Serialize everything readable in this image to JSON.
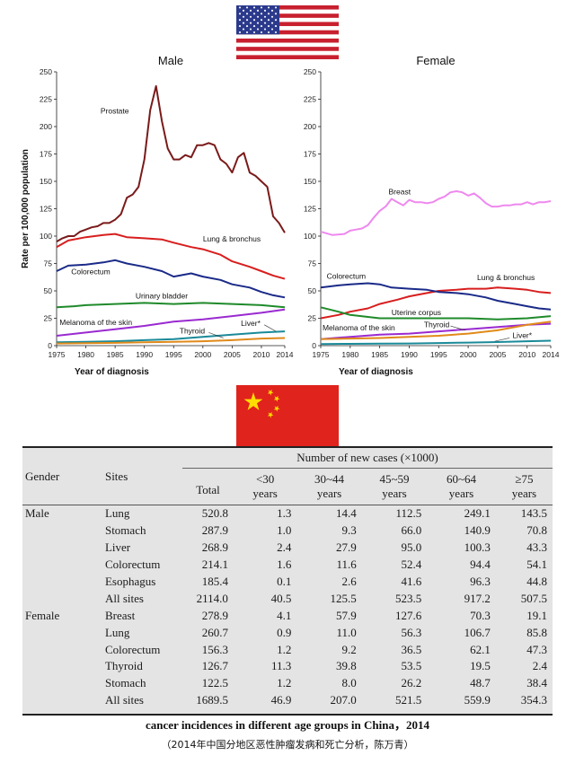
{
  "flags": {
    "top": "us-flag",
    "middle": "china-flag"
  },
  "chart_data": [
    {
      "type": "line",
      "title": "Male",
      "xlabel": "Year of diagnosis",
      "ylabel": "Rate per 100,000 population",
      "xlim": [
        1975,
        2014
      ],
      "ylim": [
        0,
        250
      ],
      "xticks": [
        "1975",
        "1980",
        "1985",
        "1990",
        "1995",
        "2000",
        "2005",
        "2010",
        "2014"
      ],
      "yticks": [
        "0",
        "25",
        "50",
        "75",
        "100",
        "125",
        "150",
        "175",
        "200",
        "225",
        "250"
      ],
      "series": [
        {
          "name": "Prostate",
          "color": "#7a1a1a",
          "x": [
            1975,
            1976,
            1977,
            1978,
            1979,
            1980,
            1981,
            1982,
            1983,
            1984,
            1985,
            1986,
            1987,
            1988,
            1989,
            1990,
            1991,
            1992,
            1993,
            1994,
            1995,
            1996,
            1997,
            1998,
            1999,
            2000,
            2001,
            2002,
            2003,
            2004,
            2005,
            2006,
            2007,
            2008,
            2009,
            2010,
            2011,
            2012,
            2013,
            2014
          ],
          "y": [
            95,
            98,
            100,
            100,
            104,
            106,
            108,
            109,
            112,
            112,
            115,
            120,
            135,
            138,
            145,
            170,
            215,
            237,
            205,
            180,
            170,
            170,
            174,
            172,
            183,
            183,
            185,
            183,
            170,
            166,
            158,
            172,
            176,
            158,
            155,
            150,
            145,
            118,
            112,
            103
          ]
        },
        {
          "name": "Lung & bronchus",
          "color": "#d81e1e",
          "x": [
            1975,
            1977,
            1980,
            1983,
            1985,
            1987,
            1990,
            1993,
            1995,
            1998,
            2000,
            2003,
            2005,
            2008,
            2010,
            2012,
            2014
          ],
          "y": [
            90,
            96,
            99,
            101,
            102,
            99,
            98,
            97,
            94,
            90,
            88,
            83,
            77,
            72,
            68,
            64,
            61
          ]
        },
        {
          "name": "Colorectum",
          "color": "#1a2a88",
          "x": [
            1975,
            1977,
            1980,
            1983,
            1985,
            1987,
            1990,
            1993,
            1995,
            1998,
            2000,
            2003,
            2005,
            2008,
            2010,
            2012,
            2014
          ],
          "y": [
            68,
            73,
            74,
            76,
            78,
            75,
            72,
            68,
            63,
            66,
            63,
            60,
            56,
            53,
            49,
            46,
            44
          ]
        },
        {
          "name": "Urinary bladder",
          "color": "#1f8a2a",
          "x": [
            1975,
            1978,
            1980,
            1985,
            1990,
            1995,
            2000,
            2005,
            2010,
            2014
          ],
          "y": [
            35,
            36,
            37,
            38,
            39,
            38,
            39,
            38,
            37,
            35
          ]
        },
        {
          "name": "Melanoma of the skin",
          "color": "#9a2ad0",
          "x": [
            1975,
            1980,
            1985,
            1990,
            1995,
            2000,
            2005,
            2010,
            2014
          ],
          "y": [
            9,
            12,
            15,
            18,
            22,
            24,
            27,
            30,
            33
          ]
        },
        {
          "name": "Liver*",
          "color": "#1a8a99",
          "x": [
            1975,
            1980,
            1985,
            1990,
            1995,
            2000,
            2005,
            2010,
            2014
          ],
          "y": [
            3,
            3.5,
            4,
            5,
            6,
            8,
            10,
            12,
            13
          ]
        },
        {
          "name": "Thyroid",
          "color": "#e08a1a",
          "x": [
            1975,
            1980,
            1985,
            1990,
            1995,
            2000,
            2005,
            2010,
            2014
          ],
          "y": [
            2,
            2.2,
            2.5,
            3,
            3.5,
            4,
            5,
            6.5,
            7
          ]
        }
      ]
    },
    {
      "type": "line",
      "title": "Female",
      "xlabel": "Year of diagnosis",
      "ylabel": "",
      "xlim": [
        1975,
        2014
      ],
      "ylim": [
        0,
        250
      ],
      "xticks": [
        "1975",
        "1980",
        "1985",
        "1990",
        "1995",
        "2000",
        "2005",
        "2010",
        "2014"
      ],
      "yticks": [
        "0",
        "25",
        "50",
        "75",
        "100",
        "125",
        "150",
        "175",
        "200",
        "225",
        "250"
      ],
      "series": [
        {
          "name": "Breast",
          "color": "#ee88ee",
          "x": [
            1975,
            1977,
            1979,
            1980,
            1981,
            1982,
            1983,
            1984,
            1985,
            1986,
            1987,
            1988,
            1989,
            1990,
            1991,
            1992,
            1993,
            1994,
            1995,
            1996,
            1997,
            1998,
            1999,
            2000,
            2001,
            2002,
            2003,
            2004,
            2005,
            2006,
            2007,
            2008,
            2009,
            2010,
            2011,
            2012,
            2013,
            2014
          ],
          "y": [
            104,
            101,
            102,
            105,
            106,
            107,
            110,
            117,
            123,
            127,
            134,
            131,
            128,
            133,
            131,
            131,
            130,
            131,
            134,
            136,
            140,
            141,
            140,
            137,
            139,
            135,
            130,
            127,
            127,
            128,
            128,
            129,
            129,
            131,
            129,
            131,
            131,
            132
          ]
        },
        {
          "name": "Lung & bronchus",
          "color": "#d81e1e",
          "x": [
            1975,
            1978,
            1980,
            1983,
            1985,
            1988,
            1990,
            1993,
            1995,
            1998,
            2000,
            2003,
            2005,
            2008,
            2010,
            2012,
            2014
          ],
          "y": [
            25,
            28,
            31,
            34,
            38,
            42,
            45,
            48,
            50,
            51,
            52,
            52,
            53,
            52,
            51,
            49,
            48
          ]
        },
        {
          "name": "Colorectum",
          "color": "#1a2a88",
          "x": [
            1975,
            1978,
            1980,
            1983,
            1985,
            1987,
            1990,
            1993,
            1995,
            1998,
            2000,
            2003,
            2005,
            2008,
            2010,
            2012,
            2014
          ],
          "y": [
            53,
            55,
            56,
            57,
            56,
            53,
            52,
            51,
            49,
            48,
            47,
            44,
            41,
            38,
            36,
            34,
            33
          ]
        },
        {
          "name": "Uterine corpus",
          "color": "#1f8a2a",
          "x": [
            1975,
            1978,
            1980,
            1985,
            1990,
            1995,
            2000,
            2005,
            2010,
            2014
          ],
          "y": [
            35,
            31,
            28,
            25,
            25,
            25,
            25,
            24,
            25,
            27
          ]
        },
        {
          "name": "Melanoma of the skin",
          "color": "#9a2ad0",
          "x": [
            1975,
            1980,
            1985,
            1990,
            1995,
            2000,
            2005,
            2010,
            2014
          ],
          "y": [
            6,
            8,
            10,
            11,
            13,
            15,
            17,
            19,
            20
          ]
        },
        {
          "name": "Thyroid",
          "color": "#e08a1a",
          "x": [
            1975,
            1980,
            1985,
            1990,
            1995,
            2000,
            2005,
            2010,
            2014
          ],
          "y": [
            6,
            6.5,
            7,
            8,
            9,
            11,
            14,
            19,
            22
          ]
        },
        {
          "name": "Liver*",
          "color": "#1a8a99",
          "x": [
            1975,
            1980,
            1985,
            1990,
            1995,
            2000,
            2005,
            2010,
            2014
          ],
          "y": [
            1.5,
            1.6,
            1.8,
            2,
            2.4,
            2.8,
            3.3,
            4,
            4.5
          ]
        }
      ]
    },
    {
      "type": "table",
      "caption": "cancer incidences in different age groups in China，2014",
      "subcaption": "（2014年中国分地区恶性肿瘤发病和死亡分析，陈万青）",
      "header": {
        "gender": "Gender",
        "sites": "Sites",
        "group": "Number of new cases (×1000)",
        "cols": [
          {
            "top": "Total",
            "bottom": ""
          },
          {
            "top": "<30",
            "bottom": "years"
          },
          {
            "top": "30~44",
            "bottom": "years"
          },
          {
            "top": "45~59",
            "bottom": "years"
          },
          {
            "top": "60~64",
            "bottom": "years"
          },
          {
            "top": "≥75",
            "bottom": "years"
          }
        ]
      },
      "rows": [
        {
          "gender": "Male",
          "site": "Lung",
          "values": [
            "520.8",
            "1.3",
            "14.4",
            "112.5",
            "249.1",
            "143.5"
          ]
        },
        {
          "gender": "",
          "site": "Stomach",
          "values": [
            "287.9",
            "1.0",
            "9.3",
            "66.0",
            "140.9",
            "70.8"
          ]
        },
        {
          "gender": "",
          "site": "Liver",
          "values": [
            "268.9",
            "2.4",
            "27.9",
            "95.0",
            "100.3",
            "43.3"
          ]
        },
        {
          "gender": "",
          "site": "Colorectum",
          "values": [
            "214.1",
            "1.6",
            "11.6",
            "52.4",
            "94.4",
            "54.1"
          ]
        },
        {
          "gender": "",
          "site": "Esophagus",
          "values": [
            "185.4",
            "0.1",
            "2.6",
            "41.6",
            "96.3",
            "44.8"
          ]
        },
        {
          "gender": "",
          "site": "All sites",
          "values": [
            "2114.0",
            "40.5",
            "125.5",
            "523.5",
            "917.2",
            "507.5"
          ]
        },
        {
          "gender": "Female",
          "site": "Breast",
          "values": [
            "278.9",
            "4.1",
            "57.9",
            "127.6",
            "70.3",
            "19.1"
          ]
        },
        {
          "gender": "",
          "site": "Lung",
          "values": [
            "260.7",
            "0.9",
            "11.0",
            "56.3",
            "106.7",
            "85.8"
          ]
        },
        {
          "gender": "",
          "site": "Colorectum",
          "values": [
            "156.3",
            "1.2",
            "9.2",
            "36.5",
            "62.1",
            "47.3"
          ]
        },
        {
          "gender": "",
          "site": "Thyroid",
          "values": [
            "126.7",
            "11.3",
            "39.8",
            "53.5",
            "19.5",
            "2.4"
          ]
        },
        {
          "gender": "",
          "site": "Stomach",
          "values": [
            "122.5",
            "1.2",
            "8.0",
            "26.2",
            "48.7",
            "38.4"
          ]
        },
        {
          "gender": "",
          "site": "All sites",
          "values": [
            "1689.5",
            "46.9",
            "207.0",
            "521.5",
            "559.9",
            "354.3"
          ]
        }
      ]
    }
  ]
}
